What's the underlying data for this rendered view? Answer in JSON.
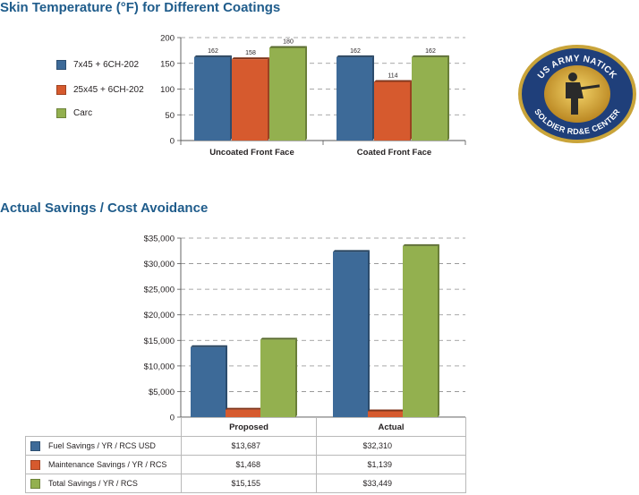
{
  "chart_data": [
    {
      "type": "bar",
      "title": "Skin Temperature (°F) for Different Coatings",
      "categories": [
        "Uncoated Front Face",
        "Coated Front Face"
      ],
      "series": [
        {
          "name": "7x45 + 6CH-202",
          "color": "#3d6a98",
          "values": [
            162,
            162
          ]
        },
        {
          "name": "25x45 + 6CH-202",
          "color": "#d65a2e",
          "values": [
            158,
            114
          ]
        },
        {
          "name": "Carc",
          "color": "#93b04f",
          "values": [
            180,
            162
          ]
        }
      ],
      "ylim": [
        0,
        200
      ],
      "yticks": [
        0,
        50,
        100,
        150,
        200
      ],
      "ytick_labels": [
        "0",
        "50",
        "100",
        "150",
        "200"
      ],
      "data_labels": true,
      "grid": true,
      "legend": "left"
    },
    {
      "type": "bar",
      "title": "Actual Savings / Cost Avoidance",
      "categories": [
        "Proposed",
        "Actual"
      ],
      "series": [
        {
          "name": "Fuel Savings / YR / RCS USD",
          "color": "#3d6a98",
          "values": [
            13687,
            32310
          ],
          "labels": [
            "$13,687",
            "$32,310"
          ]
        },
        {
          "name": "Maintenance Savings / YR / RCS",
          "color": "#d65a2e",
          "values": [
            1468,
            1139
          ],
          "labels": [
            "$1,468",
            "$1,139"
          ]
        },
        {
          "name": "Total Savings / YR / RCS",
          "color": "#93b04f",
          "values": [
            15155,
            33449
          ],
          "labels": [
            "$15,155",
            "$33,449"
          ]
        }
      ],
      "ylim": [
        0,
        35000
      ],
      "yticks": [
        0,
        5000,
        10000,
        15000,
        20000,
        25000,
        30000,
        35000
      ],
      "ytick_labels": [
        "0",
        "$5,000",
        "$10,000",
        "$15,000",
        "$20,000",
        "$25,000",
        "$30,000",
        "$35,000"
      ],
      "grid": true,
      "legend": "data-table"
    }
  ],
  "logo": {
    "top_text": "US ARMY NATICK",
    "bottom_text": "SOLDIER RD&E CENTER",
    "colors": {
      "ring": "#1f3f7a",
      "rim": "#c9a43a",
      "gold": "#d6a72c",
      "figure": "#2a2a2a"
    }
  }
}
